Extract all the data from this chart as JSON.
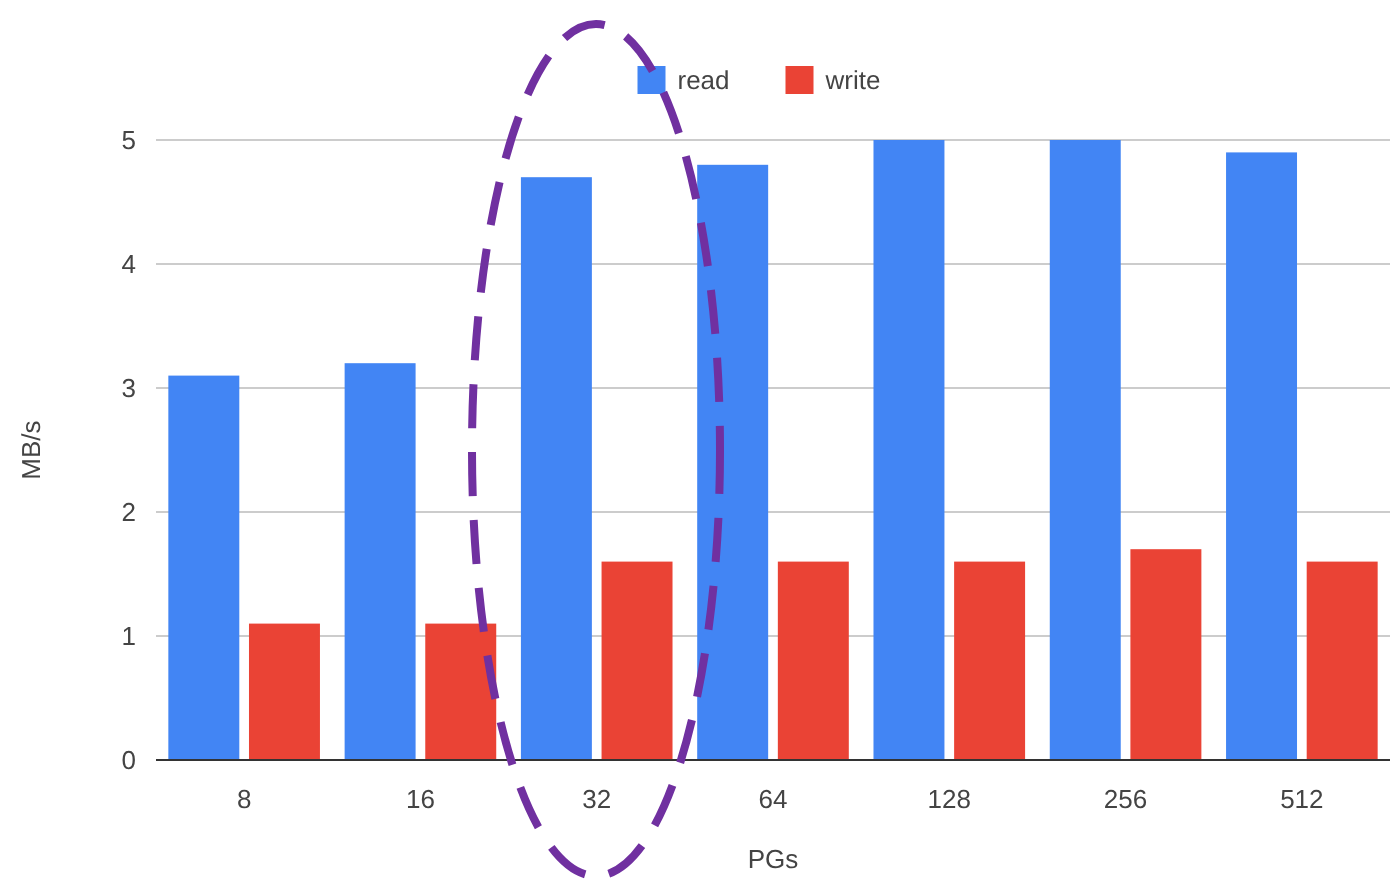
{
  "chart_data": {
    "type": "bar",
    "xlabel": "PGs",
    "ylabel": "MB/s",
    "categories": [
      "8",
      "16",
      "32",
      "64",
      "128",
      "256",
      "512"
    ],
    "series": [
      {
        "name": "read",
        "color": "#4285f4",
        "values": [
          3.1,
          3.2,
          4.7,
          4.8,
          5.0,
          5.0,
          4.9
        ]
      },
      {
        "name": "write",
        "color": "#ea4335",
        "values": [
          1.1,
          1.1,
          1.6,
          1.6,
          1.6,
          1.7,
          1.6
        ]
      }
    ],
    "ylim": [
      0,
      5
    ],
    "yticks": [
      0,
      1,
      2,
      3,
      4,
      5
    ],
    "grid": "y",
    "legend": "top"
  }
}
